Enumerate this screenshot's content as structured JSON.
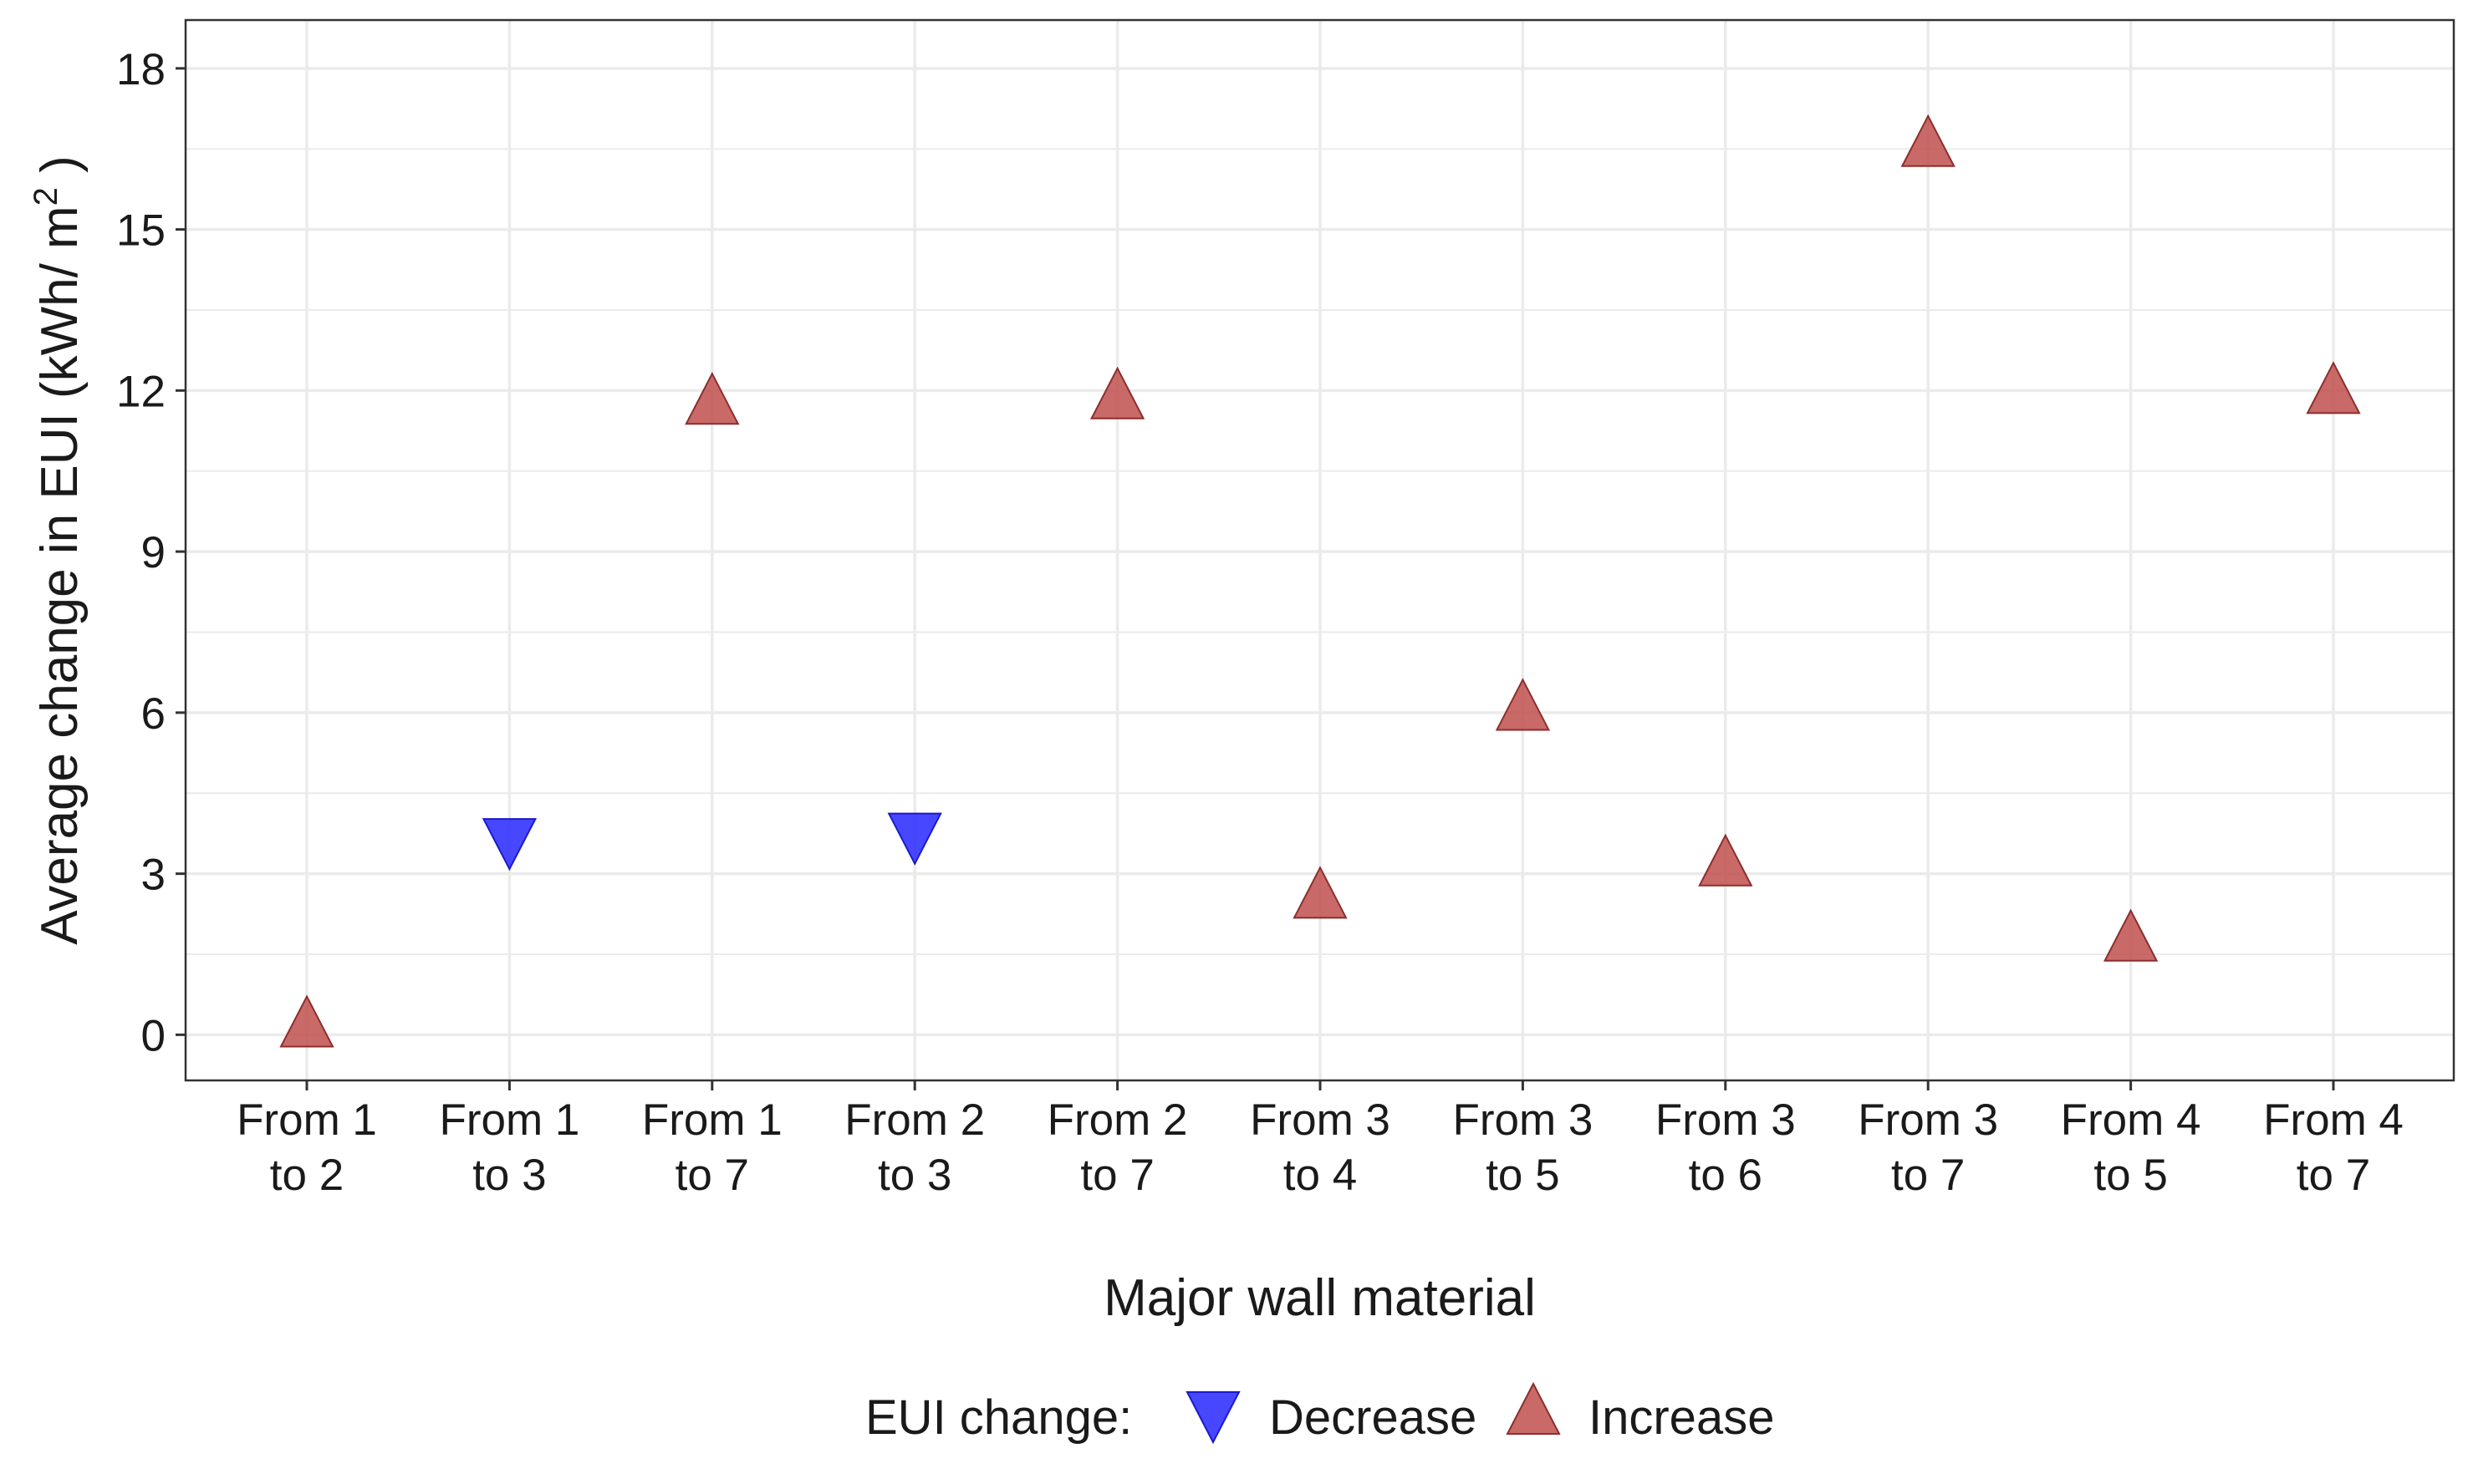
{
  "chart_data": {
    "type": "scatter",
    "xlabel": "Major wall material",
    "ylabel_main": "Average change in EUI (kWh/ m",
    "ylabel_sup": "2",
    "ylabel_close": " )",
    "categories": [
      [
        "From  1",
        "to 2"
      ],
      [
        "From 1",
        "to 3"
      ],
      [
        "From 1",
        "to 7"
      ],
      [
        "From 2",
        "to 3"
      ],
      [
        "From 2",
        "to 7"
      ],
      [
        "From 3",
        "to 4"
      ],
      [
        "From 3",
        "to 5"
      ],
      [
        "From 3",
        "to 6"
      ],
      [
        "From 3",
        "to 7"
      ],
      [
        "From 4",
        "to 5"
      ],
      [
        "From 4",
        "to 7"
      ]
    ],
    "points": [
      {
        "category": 0,
        "value": 0.2,
        "change": "Increase"
      },
      {
        "category": 1,
        "value": 3.6,
        "change": "Decrease"
      },
      {
        "category": 2,
        "value": 11.8,
        "change": "Increase"
      },
      {
        "category": 3,
        "value": 3.7,
        "change": "Decrease"
      },
      {
        "category": 4,
        "value": 11.9,
        "change": "Increase"
      },
      {
        "category": 5,
        "value": 2.6,
        "change": "Increase"
      },
      {
        "category": 6,
        "value": 6.1,
        "change": "Increase"
      },
      {
        "category": 7,
        "value": 3.2,
        "change": "Increase"
      },
      {
        "category": 8,
        "value": 16.6,
        "change": "Increase"
      },
      {
        "category": 9,
        "value": 1.8,
        "change": "Increase"
      },
      {
        "category": 10,
        "value": 12.0,
        "change": "Increase"
      }
    ],
    "yticks": [
      0,
      3,
      6,
      9,
      12,
      15,
      18
    ],
    "ylim": [
      -0.85,
      18.9
    ],
    "grid": true,
    "legend": {
      "title": "EUI change:",
      "position": "bottom",
      "entries": [
        {
          "label": "Decrease",
          "shape": "triangle-down",
          "color": "#3333ff"
        },
        {
          "label": "Increase",
          "shape": "triangle-up",
          "color": "#c0504d"
        }
      ]
    },
    "colors": {
      "Decrease": "#3333ff",
      "Increase": "#c0504d",
      "Decrease_stroke": "#1a1acc",
      "Increase_stroke": "#8b2e2c",
      "grid": "#ebebeb",
      "panel_border": "#333333"
    }
  }
}
